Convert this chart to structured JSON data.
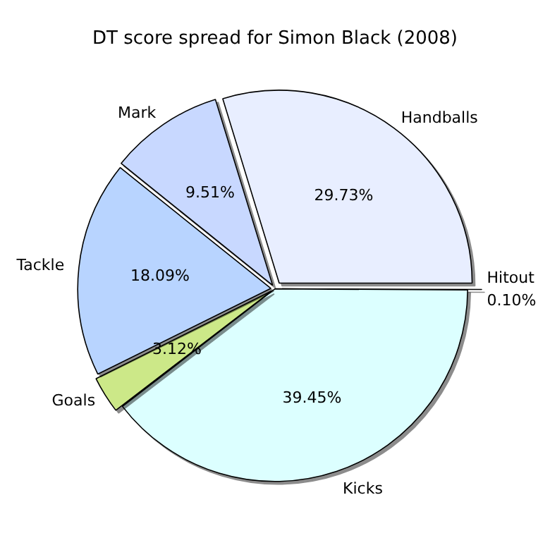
{
  "chart_data": {
    "type": "pie",
    "title": "DT score spread for Simon Black (2008)",
    "categories": [
      "Hitout",
      "Kicks",
      "Goals",
      "Tackle",
      "Mark",
      "Handballs"
    ],
    "values": [
      0.1,
      39.45,
      3.12,
      18.09,
      9.51,
      29.73
    ],
    "colors": [
      "#f4f8ff",
      "#dcffff",
      "#cce888",
      "#b8d4ff",
      "#c8d8ff",
      "#e8eeff"
    ],
    "value_labels": [
      "0.10%",
      "39.45%",
      "3.12%",
      "18.09%",
      "9.51%",
      "29.73%"
    ],
    "legend": false
  }
}
